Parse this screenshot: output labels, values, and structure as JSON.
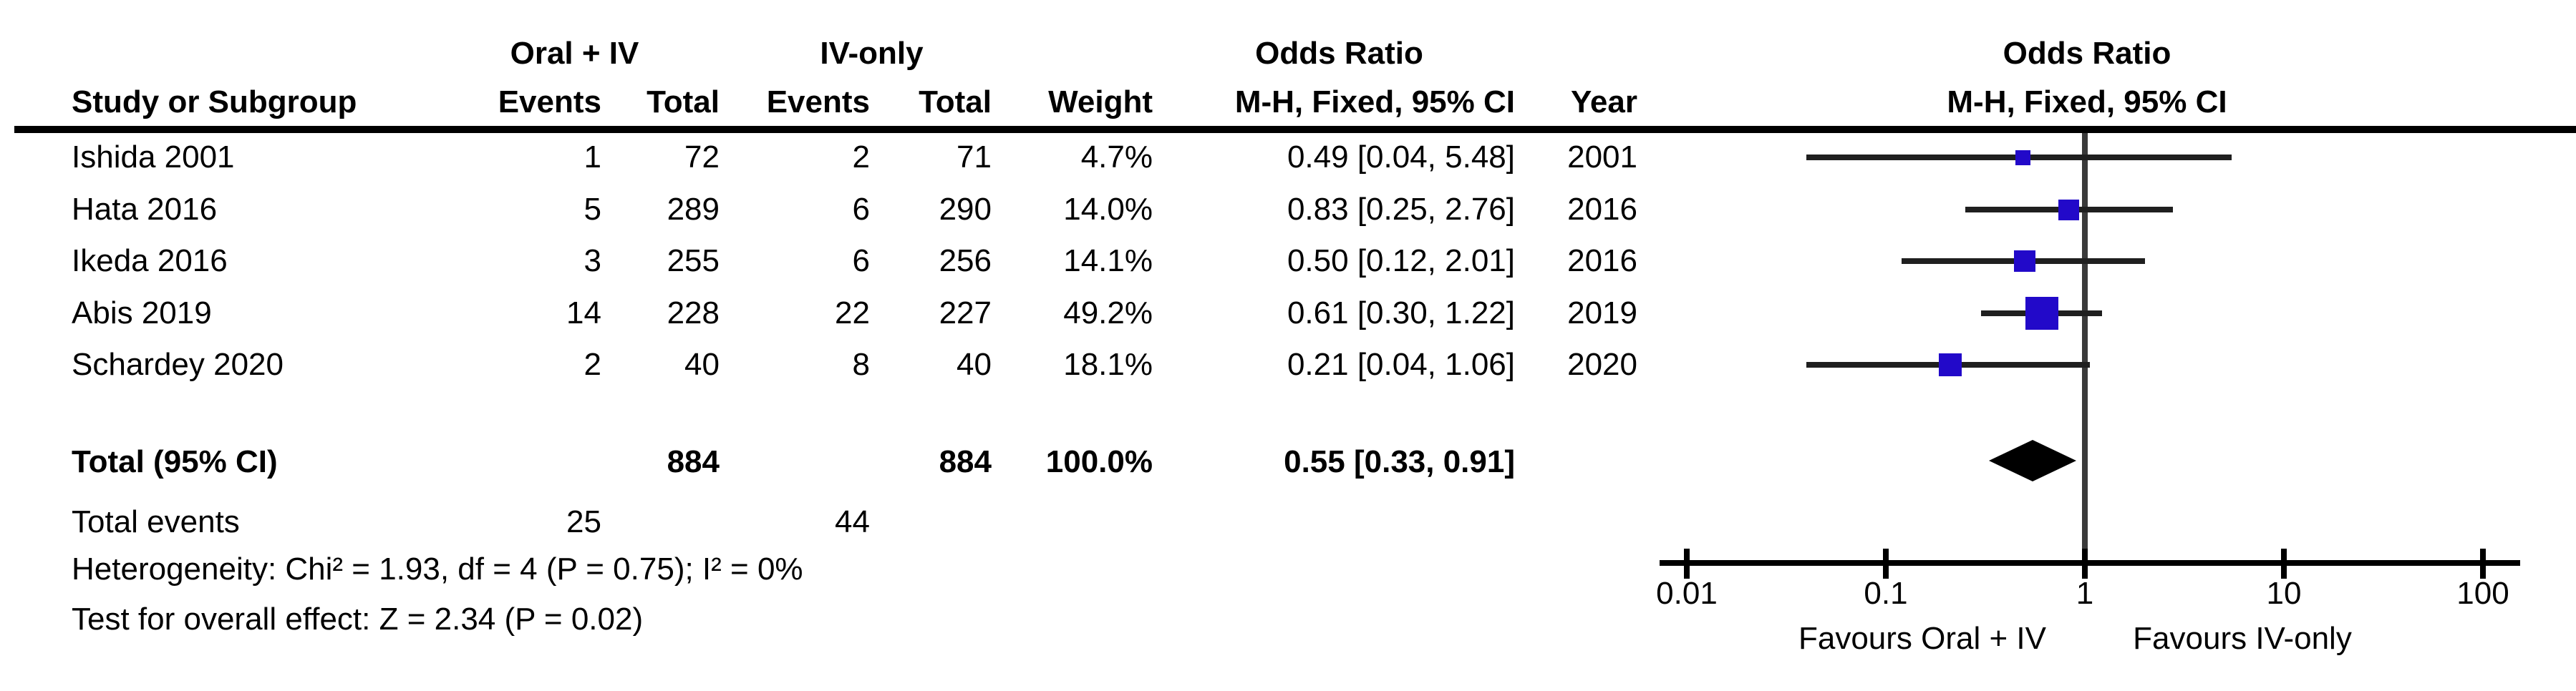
{
  "columns": {
    "study": "Study or Subgroup",
    "events": "Events",
    "total": "Total",
    "weight": "Weight",
    "or_ci": "M-H, Fixed, 95% CI",
    "year": "Year",
    "group_oral": "Oral + IV",
    "group_iv": "IV-only",
    "or_header": "Odds Ratio",
    "plot_or_header": "Odds Ratio",
    "plot_or_subheader": "M-H, Fixed, 95% CI"
  },
  "total_row": {
    "label": "Total (95% CI)",
    "total_oral_iv": "884",
    "total_iv_only": "884",
    "weight": "100.0%",
    "or_ci": "0.55 [0.33, 0.91]"
  },
  "total_events_row": {
    "label": "Total events",
    "events_oral_iv": "25",
    "events_iv_only": "44"
  },
  "footer": {
    "heterogeneity": "Heterogeneity: Chi² = 1.93, df = 4 (P = 0.75); I² = 0%",
    "overall_effect": "Test for overall effect: Z = 2.34 (P = 0.02)"
  },
  "axis": {
    "favours_left": "Favours Oral + IV",
    "favours_right": "Favours IV-only"
  },
  "colors": {
    "marker_blue": "#2209C9",
    "ci_line": "#1f1f1f",
    "null_line": "#3a3a3a",
    "axis": "#000000"
  },
  "chart_data": {
    "type": "forest",
    "effect_measure": "Odds Ratio",
    "method": "M-H, Fixed, 95% CI",
    "x_scale": "log10",
    "xlim": [
      0.01,
      100
    ],
    "x_ticks": [
      0.01,
      0.1,
      1,
      10,
      100
    ],
    "x_tick_labels": [
      "0.01",
      "0.1",
      "1",
      "10",
      "100"
    ],
    "studies": [
      {
        "label": "Ishida 2001",
        "events_oral_iv": 1,
        "total_oral_iv": 72,
        "events_iv_only": 2,
        "total_iv_only": 71,
        "weight_pct": 4.7,
        "weight_label": "4.7%",
        "or": 0.49,
        "ci_low": 0.04,
        "ci_high": 5.48,
        "or_ci_label": "0.49 [0.04, 5.48]",
        "year": "2001"
      },
      {
        "label": "Hata 2016",
        "events_oral_iv": 5,
        "total_oral_iv": 289,
        "events_iv_only": 6,
        "total_iv_only": 290,
        "weight_pct": 14.0,
        "weight_label": "14.0%",
        "or": 0.83,
        "ci_low": 0.25,
        "ci_high": 2.76,
        "or_ci_label": "0.83 [0.25, 2.76]",
        "year": "2016"
      },
      {
        "label": "Ikeda 2016",
        "events_oral_iv": 3,
        "total_oral_iv": 255,
        "events_iv_only": 6,
        "total_iv_only": 256,
        "weight_pct": 14.1,
        "weight_label": "14.1%",
        "or": 0.5,
        "ci_low": 0.12,
        "ci_high": 2.01,
        "or_ci_label": "0.50 [0.12, 2.01]",
        "year": "2016"
      },
      {
        "label": "Abis 2019",
        "events_oral_iv": 14,
        "total_oral_iv": 228,
        "events_iv_only": 22,
        "total_iv_only": 227,
        "weight_pct": 49.2,
        "weight_label": "49.2%",
        "or": 0.61,
        "ci_low": 0.3,
        "ci_high": 1.22,
        "or_ci_label": "0.61 [0.30, 1.22]",
        "year": "2019"
      },
      {
        "label": "Schardey 2020",
        "events_oral_iv": 2,
        "total_oral_iv": 40,
        "events_iv_only": 8,
        "total_iv_only": 40,
        "weight_pct": 18.1,
        "weight_label": "18.1%",
        "or": 0.21,
        "ci_low": 0.04,
        "ci_high": 1.06,
        "or_ci_label": "0.21 [0.04, 1.06]",
        "year": "2020"
      }
    ],
    "total": {
      "or": 0.55,
      "ci_low": 0.33,
      "ci_high": 0.91,
      "weight_pct": 100.0,
      "total_oral_iv": 884,
      "total_iv_only": 884,
      "events_oral_iv": 25,
      "events_iv_only": 44
    },
    "heterogeneity": {
      "chi2": 1.93,
      "df": 4,
      "p": 0.75,
      "i2_pct": 0
    },
    "overall_effect": {
      "z": 2.34,
      "p": 0.02
    }
  }
}
